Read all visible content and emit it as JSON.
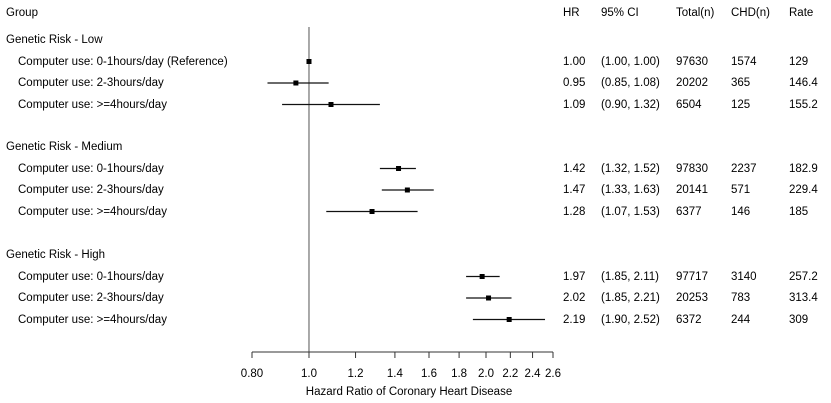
{
  "columns": {
    "group": "Group",
    "hr": "HR",
    "ci": "95% CI",
    "total": "Total(n)",
    "chd": "CHD(n)",
    "rate": "Rate"
  },
  "groups": [
    {
      "title": "Genetic Risk - Low",
      "rows": [
        {
          "label": "Computer use: 0-1hours/day (Reference)",
          "hr": "1.00",
          "ci": "(1.00, 1.00)",
          "total": "97630",
          "chd": "1574",
          "rate": "129"
        },
        {
          "label": "Computer use: 2-3hours/day",
          "hr": "0.95",
          "ci": "(0.85, 1.08)",
          "total": "20202",
          "chd": "365",
          "rate": "146.4"
        },
        {
          "label": "Computer use: >=4hours/day",
          "hr": "1.09",
          "ci": "(0.90, 1.32)",
          "total": "6504",
          "chd": "125",
          "rate": "155.2"
        }
      ]
    },
    {
      "title": "Genetic Risk - Medium",
      "rows": [
        {
          "label": "Computer use: 0-1hours/day",
          "hr": "1.42",
          "ci": "(1.32, 1.52)",
          "total": "97830",
          "chd": "2237",
          "rate": "182.9"
        },
        {
          "label": "Computer use: 2-3hours/day",
          "hr": "1.47",
          "ci": "(1.33, 1.63)",
          "total": "20141",
          "chd": "571",
          "rate": "229.4"
        },
        {
          "label": "Computer use: >=4hours/day",
          "hr": "1.28",
          "ci": "(1.07, 1.53)",
          "total": "6377",
          "chd": "146",
          "rate": "185"
        }
      ]
    },
    {
      "title": "Genetic Risk - High",
      "rows": [
        {
          "label": "Computer use: 0-1hours/day",
          "hr": "1.97",
          "ci": "(1.85, 2.11)",
          "total": "97717",
          "chd": "3140",
          "rate": "257.2"
        },
        {
          "label": "Computer use: 2-3hours/day",
          "hr": "2.02",
          "ci": "(1.85, 2.21)",
          "total": "20253",
          "chd": "783",
          "rate": "313.4"
        },
        {
          "label": "Computer use: >=4hours/day",
          "hr": "2.19",
          "ci": "(1.90, 2.52)",
          "total": "6372",
          "chd": "244",
          "rate": "309"
        }
      ]
    }
  ],
  "chart_data": {
    "type": "forest",
    "xlabel": "Hazard Ratio of Coronary Heart Disease",
    "scale": "log",
    "xlim": [
      0.8,
      2.6
    ],
    "reference_line": 1.0,
    "ticks": [
      {
        "value": 0.8,
        "label": "0.80"
      },
      {
        "value": 1.0,
        "label": "1.0"
      },
      {
        "value": 1.2,
        "label": "1.2"
      },
      {
        "value": 1.4,
        "label": "1.4"
      },
      {
        "value": 1.6,
        "label": "1.6"
      },
      {
        "value": 1.8,
        "label": "1.8"
      },
      {
        "value": 2.0,
        "label": "2.0"
      },
      {
        "value": 2.2,
        "label": "2.2"
      },
      {
        "value": 2.4,
        "label": "2.4"
      },
      {
        "value": 2.6,
        "label": "2.6"
      }
    ],
    "series": [
      {
        "group": "Genetic Risk - Low",
        "points": [
          {
            "hr": 1.0,
            "lo": 1.0,
            "hi": 1.0
          },
          {
            "hr": 0.95,
            "lo": 0.85,
            "hi": 1.08
          },
          {
            "hr": 1.09,
            "lo": 0.9,
            "hi": 1.32
          }
        ]
      },
      {
        "group": "Genetic Risk - Medium",
        "points": [
          {
            "hr": 1.42,
            "lo": 1.32,
            "hi": 1.52
          },
          {
            "hr": 1.47,
            "lo": 1.33,
            "hi": 1.63
          },
          {
            "hr": 1.28,
            "lo": 1.07,
            "hi": 1.53
          }
        ]
      },
      {
        "group": "Genetic Risk - High",
        "points": [
          {
            "hr": 1.97,
            "lo": 1.85,
            "hi": 2.11
          },
          {
            "hr": 2.02,
            "lo": 1.85,
            "hi": 2.21
          },
          {
            "hr": 2.19,
            "lo": 1.9,
            "hi": 2.52
          }
        ]
      }
    ]
  }
}
